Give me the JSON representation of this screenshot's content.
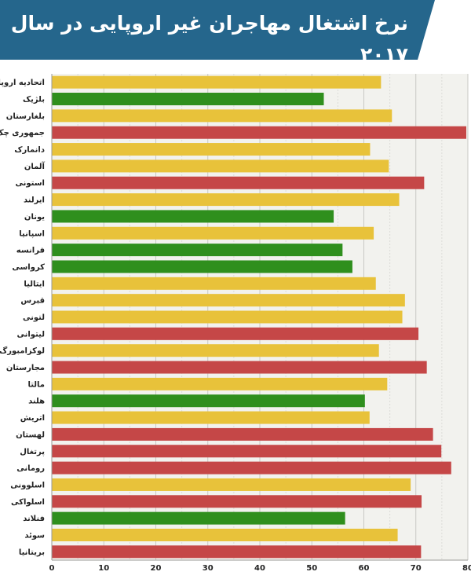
{
  "chart_data": {
    "type": "bar",
    "orientation": "horizontal",
    "title": "نرخ اشتغال مهاجران غیر اروپایی در سال ۲۰۱۷",
    "categories": [
      "اتحادیه اروپا",
      "بلژیک",
      "بلغارستان",
      "جمهوری چک",
      "دانمارک",
      "آلمان",
      "استونی",
      "ایرلند",
      "یونان",
      "اسپانیا",
      "فرانسه",
      "کرواسی",
      "ایتالیا",
      "قبرس",
      "لتونی",
      "لیتوانی",
      "لوکزامبورگ",
      "مجارستان",
      "مالتا",
      "هلند",
      "اتریش",
      "لهستان",
      "پرتغال",
      "رومانی",
      "اسلوونی",
      "اسلواکی",
      "فنلاند",
      "سوئد",
      "بریتانیا"
    ],
    "values": [
      63.3,
      52.3,
      65.4,
      79.7,
      61.2,
      64.8,
      71.6,
      66.8,
      54.2,
      61.9,
      55.9,
      57.8,
      62.3,
      67.9,
      67.4,
      70.5,
      62.9,
      72.1,
      64.5,
      60.2,
      61.1,
      73.3,
      74.9,
      76.8,
      69.0,
      71.1,
      56.4,
      66.5,
      71.0
    ],
    "colors": [
      "#e8c23a",
      "#2f8f1d",
      "#e8c23a",
      "#c54747",
      "#e8c23a",
      "#e8c23a",
      "#c54747",
      "#e8c23a",
      "#2f8f1d",
      "#e8c23a",
      "#2f8f1d",
      "#2f8f1d",
      "#e8c23a",
      "#e8c23a",
      "#e8c23a",
      "#c54747",
      "#e8c23a",
      "#c54747",
      "#e8c23a",
      "#2f8f1d",
      "#e8c23a",
      "#c54747",
      "#c54747",
      "#c54747",
      "#e8c23a",
      "#c54747",
      "#2f8f1d",
      "#e8c23a",
      "#c54747"
    ],
    "x_ticks": [
      0,
      10,
      20,
      30,
      40,
      50,
      60,
      70,
      80
    ],
    "xlim": [
      0,
      80
    ],
    "grid": true,
    "background": "#f2f2ee"
  }
}
